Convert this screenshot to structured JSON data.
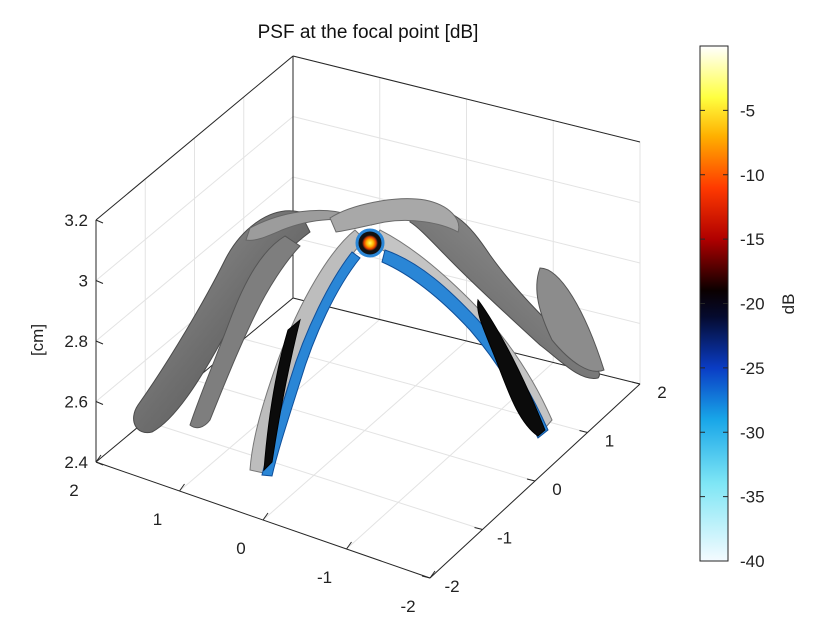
{
  "chart_data": {
    "type": "3d-isosurface",
    "title": "PSF at the focal point [dB]",
    "zlabel": "[cm]",
    "x_ticks": [
      "2",
      "1",
      "0",
      "-1",
      "-2"
    ],
    "y_ticks": [
      "-2",
      "-1",
      "0",
      "1",
      "2"
    ],
    "z_ticks": [
      "2.4",
      "2.6",
      "2.8",
      "3",
      "3.2"
    ],
    "x_range": [
      -2,
      2
    ],
    "y_range": [
      -2,
      2
    ],
    "z_range": [
      2.4,
      3.2
    ],
    "grid": true,
    "colorbar": {
      "label": "dB",
      "range": [
        -40,
        0
      ],
      "ticks": [
        "-5",
        "-10",
        "-15",
        "-20",
        "-25",
        "-30",
        "-35",
        "-40"
      ],
      "tick_values": [
        -5,
        -10,
        -15,
        -20,
        -25,
        -30,
        -35,
        -40
      ],
      "colormap_stops": [
        {
          "value": -40,
          "color": "#f4fbff"
        },
        {
          "value": -34,
          "color": "#7fe6f5"
        },
        {
          "value": -29,
          "color": "#18a6e8"
        },
        {
          "value": -25,
          "color": "#0a3cc4"
        },
        {
          "value": -21,
          "color": "#050a2e"
        },
        {
          "value": -19,
          "color": "#0a0000"
        },
        {
          "value": -15,
          "color": "#b00000"
        },
        {
          "value": -11,
          "color": "#ff3a00"
        },
        {
          "value": -7,
          "color": "#ffb000"
        },
        {
          "value": -4,
          "color": "#ffff40"
        },
        {
          "value": 0,
          "color": "#ffffff"
        }
      ]
    },
    "surface_colors": {
      "outer_lobes": "#8a8a8a",
      "outer_lobes_dark": "#5a5a5a",
      "inner_arch": "#c8c8c8",
      "core": "#0b0b0b",
      "rim": "#1e7fd0",
      "focus": "#ffd000"
    }
  }
}
